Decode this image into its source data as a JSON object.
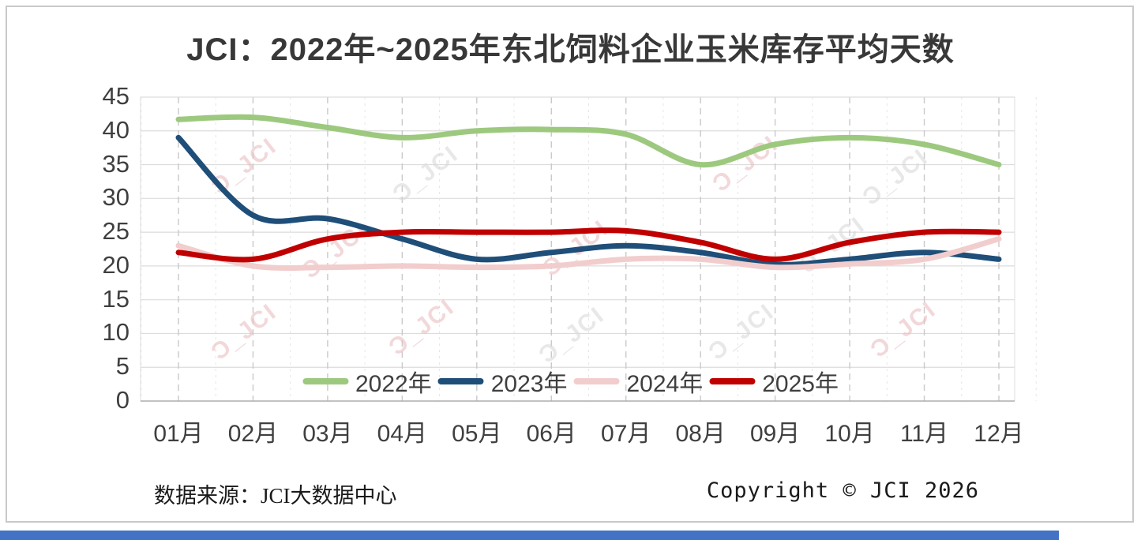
{
  "title": "JCI：2022年~2025年东北饲料企业玉米库存平均天数",
  "footer": {
    "source": "数据来源：JCI大数据中心",
    "copyright": "Copyright © JCI 2026"
  },
  "watermark_text": "Ɔ_JCI",
  "accent_bar_color": "#4472c4",
  "chart_data": {
    "type": "line",
    "title": "JCI：2022年~2025年东北饲料企业玉米库存平均天数",
    "categories": [
      "01月",
      "02月",
      "03月",
      "04月",
      "05月",
      "06月",
      "07月",
      "08月",
      "09月",
      "10月",
      "11月",
      "12月"
    ],
    "series": [
      {
        "name": "2022年",
        "color": "#9dc97f",
        "values": [
          41.7,
          42,
          40.5,
          39,
          40,
          40.2,
          39.5,
          35,
          38,
          39,
          38,
          35
        ]
      },
      {
        "name": "2023年",
        "color": "#1f4e79",
        "values": [
          39,
          27.5,
          27,
          24,
          21,
          22,
          23,
          22,
          20.2,
          21,
          22,
          21
        ]
      },
      {
        "name": "2024年",
        "color": "#f2cdcd",
        "values": [
          23,
          20,
          19.8,
          20,
          19.8,
          20,
          21,
          21,
          19.8,
          20.3,
          21,
          24
        ]
      },
      {
        "name": "2025年",
        "color": "#c00000",
        "values": [
          22,
          21,
          24,
          25,
          25,
          25,
          25.2,
          23.5,
          21,
          23.5,
          25,
          25
        ]
      }
    ],
    "xlabel": "",
    "ylabel": "",
    "ylim": [
      0,
      45
    ],
    "ytick_step": 5,
    "yticks": [
      0,
      5,
      10,
      15,
      20,
      25,
      30,
      35,
      40,
      45
    ],
    "grid": true,
    "legend_position": "bottom-center"
  }
}
